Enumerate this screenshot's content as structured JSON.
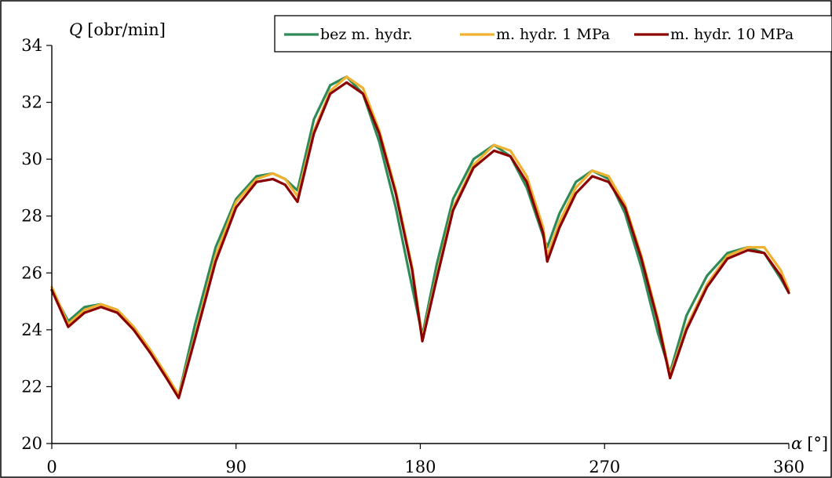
{
  "chart_data": {
    "type": "line",
    "ylabel_var": "Q",
    "ylabel_unit": "[obr/min]",
    "xlabel_var": "α",
    "xlabel_unit": "[°]",
    "xlim": [
      0,
      360
    ],
    "ylim": [
      20,
      34
    ],
    "x_ticks": [
      0,
      90,
      180,
      270,
      360
    ],
    "y_ticks": [
      20,
      22,
      24,
      26,
      28,
      30,
      32,
      34
    ],
    "grid": false,
    "legend_position": "top-right",
    "x": [
      0,
      8,
      16,
      24,
      32,
      40,
      48,
      56,
      62,
      70,
      80,
      90,
      100,
      108,
      114,
      120,
      128,
      136,
      144,
      152,
      160,
      168,
      176,
      181,
      188,
      196,
      206,
      216,
      224,
      232,
      240,
      242,
      248,
      256,
      264,
      272,
      280,
      288,
      296,
      302,
      310,
      320,
      330,
      340,
      348,
      356,
      360
    ],
    "series": [
      {
        "name": "bez m. hydr.",
        "color": "#2e8b57",
        "values": [
          25.4,
          24.3,
          24.8,
          24.9,
          24.7,
          24.1,
          23.3,
          22.4,
          21.7,
          24.2,
          26.9,
          28.6,
          29.4,
          29.5,
          29.3,
          28.9,
          31.4,
          32.6,
          32.9,
          32.3,
          30.6,
          28.3,
          25.5,
          23.8,
          26.3,
          28.6,
          30.0,
          30.5,
          30.1,
          29.0,
          27.3,
          26.9,
          28.1,
          29.2,
          29.6,
          29.3,
          28.1,
          26.2,
          23.9,
          22.5,
          24.5,
          25.9,
          26.7,
          26.9,
          26.7,
          25.8,
          25.3
        ]
      },
      {
        "name": "m. hydr. 1 MPa",
        "color": "#f0b030",
        "values": [
          25.5,
          24.2,
          24.7,
          24.9,
          24.7,
          24.1,
          23.3,
          22.4,
          21.7,
          23.8,
          26.6,
          28.5,
          29.3,
          29.5,
          29.3,
          28.7,
          31.0,
          32.4,
          32.9,
          32.5,
          31.0,
          28.9,
          26.2,
          23.7,
          25.9,
          28.3,
          29.8,
          30.5,
          30.3,
          29.4,
          27.6,
          26.6,
          27.8,
          29.0,
          29.6,
          29.4,
          28.4,
          26.6,
          24.4,
          22.4,
          24.1,
          25.6,
          26.6,
          26.9,
          26.9,
          26.1,
          25.4
        ]
      },
      {
        "name": "m. hydr. 10 MPa",
        "color": "#8b0000",
        "values": [
          25.4,
          24.1,
          24.6,
          24.8,
          24.6,
          24.0,
          23.2,
          22.3,
          21.6,
          23.7,
          26.4,
          28.3,
          29.2,
          29.3,
          29.1,
          28.5,
          30.9,
          32.3,
          32.7,
          32.3,
          30.9,
          28.8,
          26.1,
          23.6,
          25.8,
          28.2,
          29.7,
          30.3,
          30.1,
          29.2,
          27.4,
          26.4,
          27.6,
          28.8,
          29.4,
          29.2,
          28.3,
          26.5,
          24.3,
          22.3,
          24.0,
          25.5,
          26.5,
          26.8,
          26.7,
          25.9,
          25.3
        ]
      }
    ]
  }
}
